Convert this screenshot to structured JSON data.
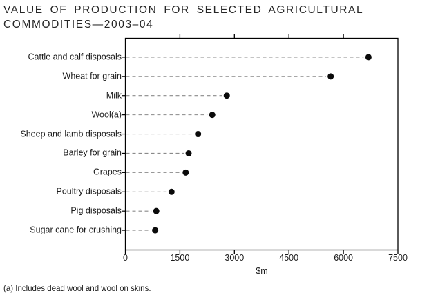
{
  "title": {
    "line1": "VALUE OF PRODUCTION FOR SELECTED AGRICULTURAL",
    "line2": "COMMODITIES—2003–04"
  },
  "footnote": "(a) Includes dead wool and wool on skins.",
  "colors": {
    "dot": "#0a0a0a",
    "dash_line": "#8a8a8a",
    "frame": "#000000",
    "text": "#1c1c1c"
  },
  "chart_data": {
    "type": "scatter",
    "variant": "horizontal-dot-plot",
    "title": "VALUE OF PRODUCTION FOR SELECTED AGRICULTURAL COMMODITIES—2003–04",
    "categories": [
      "Cattle and calf disposals",
      "Wheat for grain",
      "Milk",
      "Wool(a)",
      "Sheep and lamb disposals",
      "Barley for grain",
      "Grapes",
      "Poultry disposals",
      "Pig disposals",
      "Sugar cane for crushing"
    ],
    "values": [
      6690,
      5650,
      2790,
      2390,
      2000,
      1740,
      1660,
      1270,
      850,
      820
    ],
    "xlabel": "$m",
    "ylabel": "",
    "xlim": [
      0,
      7500
    ],
    "xticks": [
      0,
      1500,
      3000,
      4500,
      6000,
      7500
    ],
    "grid": false,
    "legend": "none",
    "marker": "filled-circle",
    "leader_line_style": "dashed"
  }
}
